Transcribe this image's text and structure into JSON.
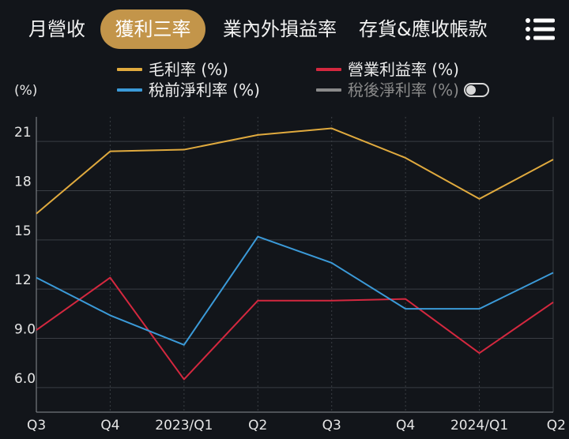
{
  "tabs": [
    {
      "label": "月營收",
      "active": false
    },
    {
      "label": "獲利三率",
      "active": true
    },
    {
      "label": "業內外損益率",
      "active": false
    },
    {
      "label": "存貨&應收帳款",
      "active": false
    }
  ],
  "menu_icon": "list-menu-icon",
  "legend": [
    {
      "label": "毛利率 (%)",
      "color": "#e0aa3e",
      "enabled": true
    },
    {
      "label": "營業利益率 (%)",
      "color": "#d4283f",
      "enabled": true
    },
    {
      "label": "稅前淨利率 (%)",
      "color": "#3b9ad8",
      "enabled": true
    },
    {
      "label": "稅後淨利率 (%)",
      "color": "#8a8a8a",
      "enabled": false
    }
  ],
  "unit_label": "(%)",
  "chart_data": {
    "type": "line",
    "x": [
      "Q3",
      "Q4",
      "2023/Q1",
      "Q2",
      "Q3",
      "Q4",
      "2024/Q1",
      "Q2"
    ],
    "ylim": [
      4.5,
      22.5
    ],
    "yticks": [
      "6.0",
      "9.0",
      "12",
      "15",
      "18",
      "21"
    ],
    "ytick_values": [
      6,
      9,
      12,
      15,
      18,
      21
    ],
    "grid": true,
    "series": [
      {
        "name": "毛利率 (%)",
        "color": "#e0aa3e",
        "values": [
          16.6,
          20.4,
          20.5,
          21.4,
          21.8,
          20.0,
          17.5,
          19.9
        ]
      },
      {
        "name": "營業利益率 (%)",
        "color": "#d4283f",
        "values": [
          9.5,
          12.7,
          6.5,
          11.3,
          11.3,
          11.4,
          8.1,
          11.2
        ]
      },
      {
        "name": "稅前淨利率 (%)",
        "color": "#3b9ad8",
        "values": [
          12.7,
          10.4,
          8.6,
          15.2,
          13.6,
          10.8,
          10.8,
          13.0
        ]
      }
    ]
  }
}
